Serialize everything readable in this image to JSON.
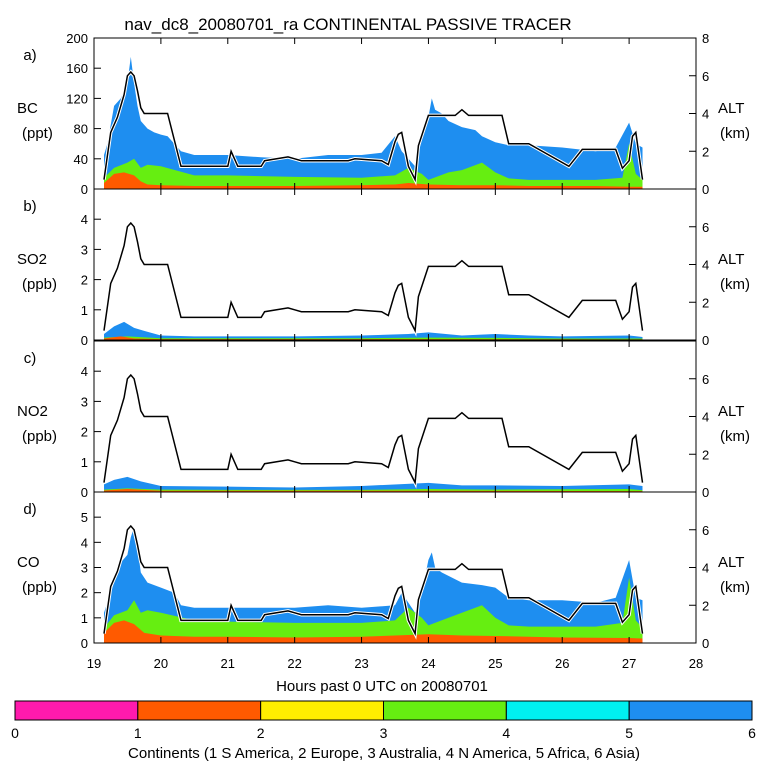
{
  "title": "nav_dc8_20080701_ra CONTINENTAL PASSIVE TRACER",
  "chart_data": {
    "type": "area",
    "x_axis": {
      "label": "Hours past 0 UTC on 20080701",
      "range": [
        19,
        28
      ],
      "ticks": [
        "19",
        "20",
        "21",
        "22",
        "23",
        "24",
        "25",
        "26",
        "27",
        "28"
      ]
    },
    "right_axis": {
      "label": "ALT",
      "units": "(km)"
    },
    "altitude_km": {
      "x": [
        19.15,
        19.25,
        19.35,
        19.45,
        19.5,
        19.55,
        19.6,
        19.65,
        19.7,
        19.75,
        19.8,
        20.1,
        20.3,
        20.8,
        20.9,
        20.95,
        21.0,
        21.05,
        21.15,
        21.5,
        21.55,
        21.9,
        22.0,
        22.1,
        22.8,
        22.9,
        23.3,
        23.4,
        23.5,
        23.55,
        23.6,
        23.7,
        23.8,
        23.85,
        24.0,
        24.4,
        24.5,
        24.6,
        25.1,
        25.2,
        25.5,
        26.1,
        26.3,
        26.8,
        26.9,
        27.0,
        27.05,
        27.1,
        27.2
      ],
      "y": [
        0.5,
        3.0,
        3.8,
        5.0,
        6.0,
        6.2,
        6.0,
        5.2,
        4.3,
        4.0,
        4.0,
        4.0,
        1.2,
        1.2,
        1.2,
        1.2,
        1.2,
        2.0,
        1.2,
        1.2,
        1.5,
        1.7,
        1.6,
        1.5,
        1.5,
        1.6,
        1.5,
        1.3,
        2.5,
        2.9,
        3.0,
        1.2,
        0.5,
        2.3,
        3.9,
        3.9,
        4.2,
        3.9,
        3.9,
        2.4,
        2.4,
        1.2,
        2.1,
        2.1,
        1.1,
        1.5,
        2.8,
        3.0,
        0.5
      ]
    },
    "legend": {
      "label": "Continents (1 S America, 2 Europe, 3 Australia, 4 N America, 5 Africa, 6 Asia)",
      "ticks": [
        "0",
        "1",
        "2",
        "3",
        "4",
        "5",
        "6"
      ],
      "colors": [
        "#ff1aad",
        "#ff5a00",
        "#ffee00",
        "#66ee11",
        "#00f0f0",
        "#1e8ef0"
      ]
    },
    "panels": [
      {
        "letter": "a)",
        "species": "BC",
        "units": "(ppt)",
        "ylim": [
          0,
          200
        ],
        "yticks": [
          "0",
          "40",
          "80",
          "120",
          "160",
          "200"
        ],
        "alt_ylim": [
          0,
          8
        ],
        "alt_ticks": [
          "0",
          "2",
          "4",
          "6",
          "8"
        ],
        "series": [
          {
            "name": "Asia (total)",
            "color": "#1e8ef0",
            "x": [
              19.15,
              19.2,
              19.3,
              19.4,
              19.5,
              19.55,
              19.6,
              19.65,
              19.7,
              19.8,
              19.9,
              20.0,
              20.1,
              20.2,
              20.3,
              20.5,
              21.0,
              21.5,
              22.0,
              22.5,
              23.0,
              23.3,
              23.5,
              23.6,
              23.7,
              23.8,
              23.9,
              24.0,
              24.05,
              24.1,
              24.2,
              24.3,
              24.5,
              24.7,
              24.8,
              25.0,
              25.1,
              25.2,
              25.5,
              26.0,
              26.5,
              26.8,
              27.0,
              27.1,
              27.2
            ],
            "y": [
              45,
              60,
              110,
              120,
              140,
              175,
              140,
              110,
              90,
              80,
              75,
              72,
              70,
              60,
              50,
              45,
              45,
              42,
              40,
              45,
              45,
              48,
              70,
              50,
              40,
              30,
              65,
              95,
              120,
              105,
              100,
              90,
              82,
              78,
              70,
              62,
              60,
              58,
              58,
              55,
              50,
              55,
              88,
              60,
              55
            ]
          },
          {
            "name": "N America",
            "color": "#66ee11",
            "x": [
              19.15,
              19.3,
              19.5,
              19.6,
              19.7,
              19.8,
              20.0,
              20.5,
              21.0,
              22.0,
              23.0,
              23.5,
              23.7,
              23.9,
              24.0,
              24.3,
              24.5,
              24.8,
              25.0,
              25.2,
              25.5,
              26.0,
              26.5,
              26.9,
              27.0,
              27.1,
              27.2
            ],
            "y": [
              15,
              28,
              35,
              40,
              28,
              32,
              30,
              18,
              18,
              16,
              15,
              18,
              28,
              20,
              12,
              22,
              25,
              35,
              22,
              14,
              12,
              12,
              12,
              15,
              60,
              20,
              12
            ]
          },
          {
            "name": "Europe",
            "color": "#ff5a00",
            "x": [
              19.15,
              19.3,
              19.45,
              19.6,
              19.7,
              19.8,
              20.0,
              20.5,
              21.0,
              22.0,
              23.0,
              23.5,
              23.7,
              24.0,
              24.5,
              25.0,
              25.5,
              26.0,
              26.5,
              27.0,
              27.2
            ],
            "y": [
              8,
              20,
              22,
              18,
              10,
              6,
              5,
              4,
              4,
              4,
              5,
              6,
              8,
              6,
              5,
              5,
              4,
              4,
              4,
              3,
              3
            ]
          }
        ]
      },
      {
        "letter": "b)",
        "species": "SO2",
        "units": "(ppb)",
        "ylim": [
          0,
          5
        ],
        "yticks": [
          "0",
          "1",
          "2",
          "3",
          "4"
        ],
        "alt_ylim": [
          0,
          8
        ],
        "alt_ticks": [
          "0",
          "2",
          "4",
          "6"
        ],
        "series": [
          {
            "name": "Asia (total)",
            "color": "#1e8ef0",
            "x": [
              19.15,
              19.3,
              19.45,
              19.6,
              19.75,
              20.0,
              20.5,
              21.0,
              22.0,
              23.0,
              23.7,
              24.0,
              24.5,
              25.0,
              25.5,
              26.0,
              27.0,
              27.2
            ],
            "y": [
              0.2,
              0.45,
              0.6,
              0.4,
              0.3,
              0.15,
              0.12,
              0.12,
              0.12,
              0.15,
              0.2,
              0.25,
              0.15,
              0.2,
              0.15,
              0.12,
              0.15,
              0.1
            ]
          },
          {
            "name": "N America",
            "color": "#66ee11",
            "x": [
              19.15,
              19.5,
              20.0,
              21.0,
              23.0,
              24.0,
              25.0,
              26.0,
              27.2
            ],
            "y": [
              0.08,
              0.12,
              0.06,
              0.06,
              0.06,
              0.08,
              0.07,
              0.05,
              0.05
            ]
          },
          {
            "name": "Europe",
            "color": "#ff5a00",
            "x": [
              19.15,
              19.4,
              19.6,
              20.0,
              21.0,
              24.0,
              27.2
            ],
            "y": [
              0.05,
              0.12,
              0.05,
              0.03,
              0.03,
              0.03,
              0.02
            ]
          }
        ]
      },
      {
        "letter": "c)",
        "species": "NO2",
        "units": "(ppb)",
        "ylim": [
          0,
          5
        ],
        "yticks": [
          "0",
          "1",
          "2",
          "3",
          "4"
        ],
        "alt_ylim": [
          0,
          8
        ],
        "alt_ticks": [
          "0",
          "2",
          "4",
          "6"
        ],
        "series": [
          {
            "name": "Asia (total)",
            "color": "#1e8ef0",
            "x": [
              19.15,
              19.3,
              19.5,
              19.7,
              20.0,
              21.0,
              22.0,
              23.0,
              24.0,
              24.5,
              25.0,
              26.0,
              27.0,
              27.2
            ],
            "y": [
              0.25,
              0.4,
              0.5,
              0.35,
              0.2,
              0.18,
              0.15,
              0.2,
              0.3,
              0.22,
              0.22,
              0.2,
              0.25,
              0.2
            ]
          },
          {
            "name": "N America",
            "color": "#66ee11",
            "x": [
              19.15,
              19.5,
              20.0,
              21.0,
              23.0,
              24.0,
              25.0,
              27.0,
              27.2
            ],
            "y": [
              0.08,
              0.12,
              0.08,
              0.07,
              0.07,
              0.1,
              0.08,
              0.1,
              0.06
            ]
          },
          {
            "name": "Europe",
            "color": "#ff5a00",
            "x": [
              19.15,
              19.5,
              20.0,
              24.0,
              27.2
            ],
            "y": [
              0.05,
              0.1,
              0.04,
              0.04,
              0.03
            ]
          }
        ]
      },
      {
        "letter": "d)",
        "species": "CO",
        "units": "(ppb)",
        "ylim": [
          0,
          6
        ],
        "yticks": [
          "0",
          "1",
          "2",
          "3",
          "4",
          "5"
        ],
        "alt_ylim": [
          0,
          8
        ],
        "alt_ticks": [
          "0",
          "2",
          "4",
          "6"
        ],
        "series": [
          {
            "name": "Asia (total)",
            "color": "#1e8ef0",
            "x": [
              19.15,
              19.3,
              19.4,
              19.5,
              19.55,
              19.6,
              19.65,
              19.7,
              19.8,
              20.0,
              20.2,
              20.3,
              20.5,
              21.0,
              21.5,
              22.0,
              22.5,
              23.0,
              23.5,
              23.6,
              23.8,
              23.9,
              24.0,
              24.05,
              24.1,
              24.2,
              24.5,
              24.8,
              25.0,
              25.2,
              25.5,
              26.0,
              26.5,
              26.8,
              27.0,
              27.1,
              27.2
            ],
            "y": [
              1.2,
              2.4,
              3.2,
              3.5,
              4.2,
              4.6,
              3.8,
              2.8,
              2.4,
              2.2,
              2.0,
              1.5,
              1.4,
              1.4,
              1.4,
              1.4,
              1.5,
              1.4,
              1.5,
              2.0,
              1.2,
              2.0,
              3.3,
              3.6,
              3.0,
              2.8,
              2.4,
              2.3,
              2.2,
              1.8,
              1.7,
              1.7,
              1.6,
              1.8,
              3.3,
              1.8,
              1.7
            ]
          },
          {
            "name": "N America",
            "color": "#66ee11",
            "x": [
              19.15,
              19.3,
              19.5,
              19.6,
              19.7,
              19.8,
              20.0,
              20.5,
              21.0,
              22.0,
              23.0,
              23.5,
              23.7,
              23.9,
              24.0,
              24.3,
              24.5,
              24.8,
              25.0,
              25.2,
              25.5,
              26.0,
              26.5,
              26.9,
              27.0,
              27.1,
              27.2
            ],
            "y": [
              0.6,
              1.1,
              1.3,
              1.7,
              1.2,
              1.3,
              1.2,
              0.9,
              0.85,
              0.8,
              0.8,
              0.9,
              1.4,
              1.0,
              0.7,
              1.0,
              1.2,
              1.5,
              1.0,
              0.7,
              0.65,
              0.65,
              0.65,
              0.8,
              2.6,
              0.9,
              0.6
            ]
          },
          {
            "name": "Europe",
            "color": "#ff5a00",
            "x": [
              19.15,
              19.3,
              19.45,
              19.6,
              19.75,
              20.0,
              20.5,
              21.0,
              22.0,
              23.0,
              23.5,
              24.0,
              24.5,
              25.0,
              25.5,
              26.0,
              27.0,
              27.2
            ],
            "y": [
              0.4,
              0.8,
              0.9,
              0.75,
              0.4,
              0.3,
              0.25,
              0.25,
              0.22,
              0.25,
              0.3,
              0.35,
              0.3,
              0.28,
              0.25,
              0.22,
              0.2,
              0.18
            ]
          }
        ]
      }
    ]
  }
}
